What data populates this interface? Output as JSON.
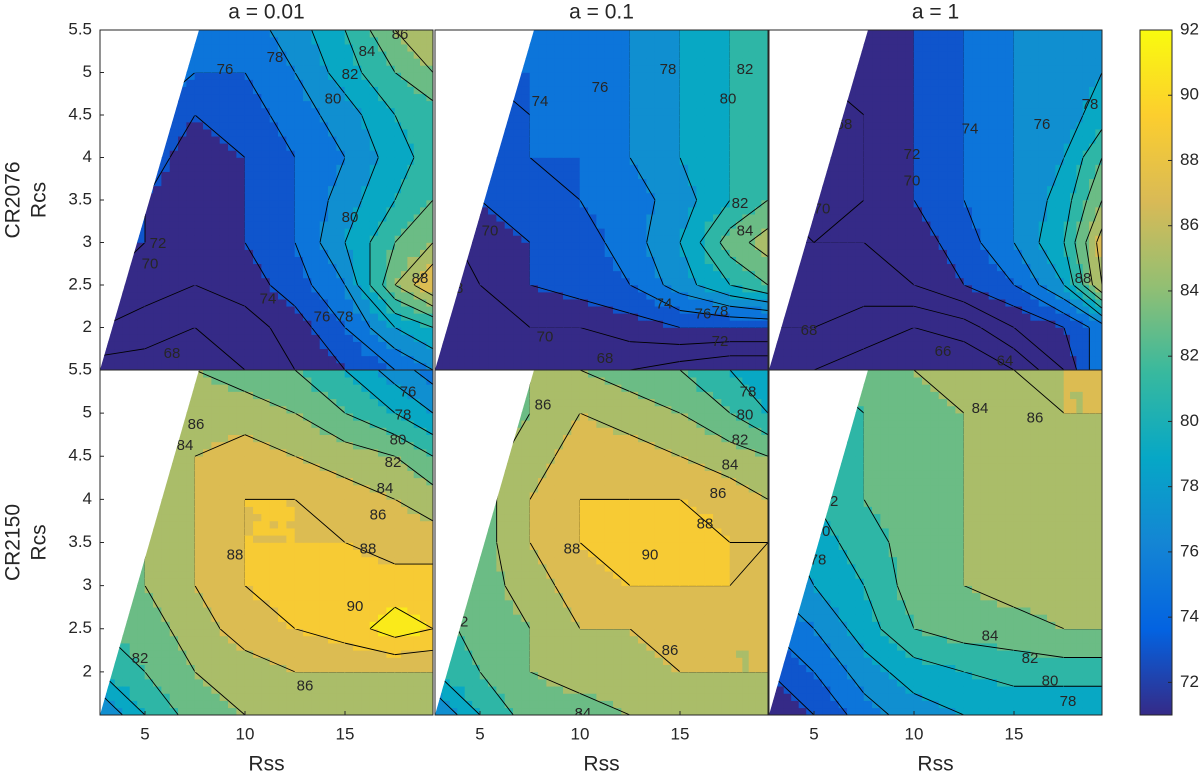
{
  "chart_data": [
    {
      "type": "contour",
      "title": "a = 0.01",
      "row_label": "CR2076",
      "ylabel": "Rcs",
      "x": [
        2.75,
        5,
        7.5,
        10,
        12.5,
        15,
        17.5,
        19.4
      ],
      "y": [
        1.5,
        2,
        2.5,
        3,
        3.5,
        4,
        4.5,
        5,
        5.5
      ],
      "z": [
        [
          67,
          67,
          67,
          68,
          70,
          72,
          74,
          76
        ],
        [
          70,
          69,
          68,
          69,
          71,
          74,
          78,
          80
        ],
        [
          72,
          71,
          70,
          71,
          73,
          76,
          84,
          88
        ],
        [
          72,
          72,
          71,
          72,
          74,
          78,
          82,
          84
        ],
        [
          73,
          72,
          71,
          72,
          74,
          77,
          80,
          82
        ],
        [
          74,
          73,
          71,
          72,
          74,
          76,
          79,
          81
        ],
        [
          76,
          74,
          72,
          73,
          75,
          77,
          80,
          81
        ],
        [
          78,
          76,
          74,
          74,
          76,
          79,
          82,
          84
        ],
        [
          80,
          78,
          75,
          75,
          77,
          80,
          84,
          86
        ]
      ],
      "xlim": [
        2.75,
        19.4
      ],
      "ylim": [
        1.5,
        5.5
      ],
      "yticks": [
        2,
        2.5,
        3,
        3.5,
        4,
        4.5,
        5,
        5.5
      ],
      "data_region": [
        [
          2.75,
          1.5
        ],
        [
          7.7,
          5.5
        ],
        [
          19.4,
          5.5
        ],
        [
          19.4,
          1.5
        ]
      ],
      "contour_labels": [
        {
          "value": 86,
          "x": 17.75,
          "y": 5.44
        },
        {
          "value": 84,
          "x": 16.1,
          "y": 5.24
        },
        {
          "value": 82,
          "x": 15.25,
          "y": 4.97
        },
        {
          "value": 80,
          "x": 14.4,
          "y": 4.68
        },
        {
          "value": 78,
          "x": 11.5,
          "y": 5.17
        },
        {
          "value": 76,
          "x": 9,
          "y": 5.03
        },
        {
          "value": 74,
          "x": 11.15,
          "y": 2.33
        },
        {
          "value": 76,
          "x": 13.85,
          "y": 2.12
        },
        {
          "value": 78,
          "x": 15,
          "y": 2.12
        },
        {
          "value": 80,
          "x": 15.25,
          "y": 3.29
        },
        {
          "value": 72,
          "x": 5.65,
          "y": 2.98
        },
        {
          "value": 70,
          "x": 5.25,
          "y": 2.74
        },
        {
          "value": 68,
          "x": 3.6,
          "y": 2.51
        },
        {
          "value": 68,
          "x": 6.35,
          "y": 1.69
        },
        {
          "value": 88,
          "x": 18.75,
          "y": 2.57
        }
      ]
    },
    {
      "type": "contour",
      "title": "a = 0.1",
      "x": [
        2.75,
        5,
        7.5,
        10,
        12.5,
        15,
        17.5,
        19.4
      ],
      "y": [
        1.5,
        2,
        2.5,
        3,
        3.5,
        4,
        4.5,
        5,
        5.5
      ],
      "z": [
        [
          68,
          68,
          68,
          68,
          68,
          67,
          66,
          66
        ],
        [
          69,
          69,
          70,
          70,
          71,
          72,
          72,
          72
        ],
        [
          68,
          70,
          72,
          73,
          74,
          77,
          80,
          82
        ],
        [
          69,
          71,
          72,
          73,
          75,
          78,
          83,
          85
        ],
        [
          71,
          72,
          73,
          74,
          75,
          77,
          80,
          82
        ],
        [
          72,
          73,
          74,
          74,
          76,
          78,
          80,
          81
        ],
        [
          73,
          73,
          74,
          75,
          76,
          78,
          80,
          81
        ],
        [
          75,
          74,
          74,
          75,
          76,
          78,
          80,
          82
        ],
        [
          78,
          76,
          75,
          75,
          76,
          78,
          80,
          82
        ]
      ],
      "xlim": [
        2.75,
        19.4
      ],
      "ylim": [
        1.5,
        5.5
      ],
      "data_region": [
        [
          2.75,
          1.5
        ],
        [
          7.7,
          5.5
        ],
        [
          19.4,
          5.5
        ],
        [
          19.4,
          1.5
        ]
      ],
      "contour_labels": [
        {
          "value": 74,
          "x": 8,
          "y": 4.65
        },
        {
          "value": 76,
          "x": 11,
          "y": 4.82
        },
        {
          "value": 78,
          "x": 14.4,
          "y": 5.03
        },
        {
          "value": 80,
          "x": 17.4,
          "y": 4.68
        },
        {
          "value": 82,
          "x": 18.25,
          "y": 5.03
        },
        {
          "value": 84,
          "x": 18.25,
          "y": 3.13
        },
        {
          "value": 82,
          "x": 18,
          "y": 3.45
        },
        {
          "value": 74,
          "x": 14.2,
          "y": 2.27
        },
        {
          "value": 76,
          "x": 16.15,
          "y": 2.15
        },
        {
          "value": 78,
          "x": 17,
          "y": 2.18
        },
        {
          "value": 70,
          "x": 8.25,
          "y": 1.88
        },
        {
          "value": 72,
          "x": 17,
          "y": 1.83
        },
        {
          "value": 68,
          "x": 11.25,
          "y": 1.63
        },
        {
          "value": 68,
          "x": 3.75,
          "y": 2.45
        },
        {
          "value": 70,
          "x": 5.5,
          "y": 3.13
        }
      ]
    },
    {
      "type": "contour",
      "title": "a = 1",
      "x": [
        2.75,
        5,
        7.5,
        10,
        12.5,
        15,
        17.5,
        19.4
      ],
      "y": [
        1.5,
        2,
        2.5,
        3,
        3.5,
        4,
        4.5,
        5,
        5.5
      ],
      "z": [
        [
          66,
          66,
          65,
          64,
          64,
          66,
          70,
          76
        ],
        [
          68,
          68,
          67,
          66,
          67,
          70,
          72,
          75
        ],
        [
          69,
          69,
          69,
          70,
          72,
          74,
          78,
          86
        ],
        [
          70,
          70,
          70,
          71,
          73,
          76,
          80,
          87
        ],
        [
          70,
          69,
          70,
          72,
          74,
          76,
          79,
          84
        ],
        [
          70,
          69,
          70,
          72,
          74,
          76,
          78,
          82
        ],
        [
          70,
          68,
          70,
          72,
          74,
          76,
          77,
          79
        ],
        [
          76,
          70,
          70,
          72,
          74,
          76,
          77,
          78
        ],
        [
          90,
          72,
          70,
          72,
          74,
          76,
          77,
          78
        ]
      ],
      "xlim": [
        2.75,
        19.4
      ],
      "ylim": [
        1.5,
        5.5
      ],
      "data_region": [
        [
          2.75,
          1.5
        ],
        [
          7.7,
          5.5
        ],
        [
          19.4,
          5.5
        ],
        [
          19.4,
          1.5
        ]
      ],
      "contour_labels": [
        {
          "value": 68,
          "x": 6.5,
          "y": 4.38
        },
        {
          "value": 70,
          "x": 5.4,
          "y": 3.39
        },
        {
          "value": 72,
          "x": 9.9,
          "y": 4.03
        },
        {
          "value": 70,
          "x": 9.9,
          "y": 3.72
        },
        {
          "value": 74,
          "x": 12.8,
          "y": 4.33
        },
        {
          "value": 76,
          "x": 16.4,
          "y": 4.38
        },
        {
          "value": 78,
          "x": 18.8,
          "y": 4.62
        },
        {
          "value": 68,
          "x": 4.75,
          "y": 1.96
        },
        {
          "value": 66,
          "x": 11.45,
          "y": 1.71
        },
        {
          "value": 64,
          "x": 14.55,
          "y": 1.6
        },
        {
          "value": 88,
          "x": 18.45,
          "y": 2.57
        }
      ]
    },
    {
      "type": "contour",
      "row_label": "CR2150",
      "ylabel": "Rcs",
      "xlabel": "Rss",
      "x": [
        2.75,
        5,
        7.5,
        10,
        12.5,
        15,
        17.5,
        19.4
      ],
      "y": [
        1.5,
        2,
        2.5,
        3,
        3.5,
        4,
        4.5,
        5,
        5.5
      ],
      "z": [
        [
          76,
          80,
          83,
          84,
          85,
          85,
          84,
          84
        ],
        [
          80,
          82,
          84,
          85,
          86,
          86,
          86,
          86
        ],
        [
          82,
          83,
          85,
          87,
          88,
          89,
          91,
          90
        ],
        [
          83,
          84,
          86,
          88,
          89,
          89,
          89,
          89
        ],
        [
          83,
          84,
          86,
          88,
          88,
          88,
          87,
          87
        ],
        [
          83,
          84,
          86,
          88,
          88,
          87,
          86,
          85
        ],
        [
          83,
          84,
          86,
          87,
          86,
          85,
          84,
          82
        ],
        [
          82,
          83,
          85,
          85,
          84,
          82,
          80,
          78
        ],
        [
          81,
          82,
          84,
          83,
          82,
          80,
          77,
          75
        ]
      ],
      "xlim": [
        2.75,
        19.4
      ],
      "ylim": [
        1.5,
        5.5
      ],
      "xticks": [
        5,
        10,
        15
      ],
      "yticks": [
        2,
        2.5,
        3,
        3.5,
        4,
        4.5,
        5,
        5.5
      ],
      "data_region": [
        [
          2.75,
          1.5
        ],
        [
          7.7,
          5.5
        ],
        [
          19.4,
          5.5
        ],
        [
          19.4,
          1.5
        ]
      ],
      "contour_labels": [
        {
          "value": 76,
          "x": 18.15,
          "y": 5.24
        },
        {
          "value": 78,
          "x": 17.9,
          "y": 4.97
        },
        {
          "value": 80,
          "x": 17.65,
          "y": 4.68
        },
        {
          "value": 82,
          "x": 17.4,
          "y": 4.42
        },
        {
          "value": 84,
          "x": 17,
          "y": 4.12
        },
        {
          "value": 86,
          "x": 16.65,
          "y": 3.81
        },
        {
          "value": 88,
          "x": 16.15,
          "y": 3.42
        },
        {
          "value": 90,
          "x": 15.5,
          "y": 2.75
        },
        {
          "value": 88,
          "x": 9.5,
          "y": 3.35
        },
        {
          "value": 86,
          "x": 13,
          "y": 1.83
        },
        {
          "value": 84,
          "x": 7,
          "y": 4.62
        },
        {
          "value": 86,
          "x": 7.55,
          "y": 4.86
        },
        {
          "value": 82,
          "x": 6.85,
          "y": 5.17
        },
        {
          "value": 82,
          "x": 4.75,
          "y": 2.15
        }
      ]
    },
    {
      "type": "contour",
      "xlabel": "Rss",
      "x": [
        2.75,
        5,
        7.5,
        10,
        12.5,
        15,
        17.5,
        19.4
      ],
      "y": [
        1.5,
        2,
        2.5,
        3,
        3.5,
        4,
        4.5,
        5,
        5.5
      ],
      "z": [
        [
          76,
          80,
          83,
          83,
          84,
          84,
          85,
          85
        ],
        [
          80,
          82,
          84,
          85,
          85,
          86,
          86,
          86
        ],
        [
          81,
          83,
          84,
          86,
          86,
          87,
          86,
          86
        ],
        [
          82,
          83,
          85,
          87,
          88,
          88,
          88,
          87
        ],
        [
          82,
          83,
          86,
          88,
          89.5,
          90,
          88,
          88
        ],
        [
          82,
          83,
          86,
          88,
          88,
          88,
          87,
          86
        ],
        [
          82,
          83,
          85,
          87,
          87,
          86,
          85,
          84
        ],
        [
          82,
          83,
          84,
          86,
          85,
          84,
          82,
          80
        ],
        [
          82,
          82,
          84,
          84,
          83,
          82,
          80,
          78
        ]
      ],
      "xlim": [
        2.75,
        19.4
      ],
      "ylim": [
        1.5,
        5.5
      ],
      "xticks": [
        5,
        10,
        15
      ],
      "data_region": [
        [
          2.75,
          1.5
        ],
        [
          7.7,
          5.5
        ],
        [
          19.4,
          5.5
        ],
        [
          19.4,
          1.5
        ]
      ],
      "contour_labels": [
        {
          "value": 78,
          "x": 18.4,
          "y": 5.24
        },
        {
          "value": 80,
          "x": 18.25,
          "y": 4.97
        },
        {
          "value": 82,
          "x": 18,
          "y": 4.68
        },
        {
          "value": 84,
          "x": 17.5,
          "y": 4.39
        },
        {
          "value": 86,
          "x": 16.9,
          "y": 4.06
        },
        {
          "value": 88,
          "x": 16.25,
          "y": 3.71
        },
        {
          "value": 90,
          "x": 13.5,
          "y": 3.35
        },
        {
          "value": 88,
          "x": 9.6,
          "y": 3.42
        },
        {
          "value": 86,
          "x": 14.5,
          "y": 2.24
        },
        {
          "value": 84,
          "x": 10.15,
          "y": 1.51
        },
        {
          "value": 86,
          "x": 8.15,
          "y": 5.09
        },
        {
          "value": 82,
          "x": 6.75,
          "y": 5.09
        },
        {
          "value": 82,
          "x": 4,
          "y": 2.57
        }
      ]
    },
    {
      "type": "contour",
      "xlabel": "Rss",
      "x": [
        2.75,
        5,
        7.5,
        10,
        12.5,
        15,
        17.5,
        19.4
      ],
      "y": [
        1.5,
        2,
        2.5,
        3,
        3.5,
        4,
        4.5,
        5,
        5.5
      ],
      "z": [
        [
          70,
          72,
          75,
          77,
          78,
          78,
          78,
          78
        ],
        [
          72,
          74,
          77,
          79,
          80,
          81,
          81,
          81
        ],
        [
          74,
          76,
          79,
          82,
          83,
          83,
          84,
          84
        ],
        [
          76,
          78,
          80,
          83,
          84,
          85,
          85,
          85
        ],
        [
          77,
          79,
          81,
          83,
          84,
          85,
          85,
          86
        ],
        [
          78,
          80,
          82,
          83,
          84,
          85,
          85,
          85
        ],
        [
          79,
          81,
          82,
          83,
          84,
          85,
          85,
          85
        ],
        [
          80,
          81,
          82,
          83,
          84,
          85,
          86,
          86
        ],
        [
          80,
          82,
          83,
          84,
          85,
          86,
          86,
          86
        ]
      ],
      "xlim": [
        2.75,
        19.4
      ],
      "ylim": [
        1.5,
        5.5
      ],
      "xticks": [
        5,
        10,
        15
      ],
      "data_region": [
        [
          2.75,
          1.5
        ],
        [
          7.7,
          5.5
        ],
        [
          19.4,
          5.5
        ],
        [
          19.4,
          1.5
        ]
      ],
      "contour_labels": [
        {
          "value": 84,
          "x": 13.3,
          "y": 5.05
        },
        {
          "value": 86,
          "x": 16.05,
          "y": 4.94
        },
        {
          "value": 82,
          "x": 5.8,
          "y": 3.97
        },
        {
          "value": 80,
          "x": 5.4,
          "y": 3.62
        },
        {
          "value": 78,
          "x": 5.2,
          "y": 3.29
        },
        {
          "value": 84,
          "x": 13.8,
          "y": 2.41
        },
        {
          "value": 82,
          "x": 15.8,
          "y": 2.15
        },
        {
          "value": 80,
          "x": 16.8,
          "y": 1.89
        },
        {
          "value": 78,
          "x": 17.7,
          "y": 1.65
        }
      ]
    }
  ],
  "colorbar": {
    "clim": [
      71,
      92
    ],
    "ticks": [
      72,
      74,
      76,
      78,
      80,
      82,
      84,
      86,
      88,
      90,
      92
    ],
    "levels": [
      62,
      64,
      66,
      68,
      70,
      72,
      74,
      76,
      78,
      80,
      82,
      84,
      86,
      88,
      90,
      92
    ],
    "colormap": [
      "#352a87",
      "#0363e1",
      "#1485d4",
      "#06a7c6",
      "#38b99e",
      "#92bf73",
      "#d9ba56",
      "#fcce2e",
      "#f9fb0e"
    ]
  }
}
